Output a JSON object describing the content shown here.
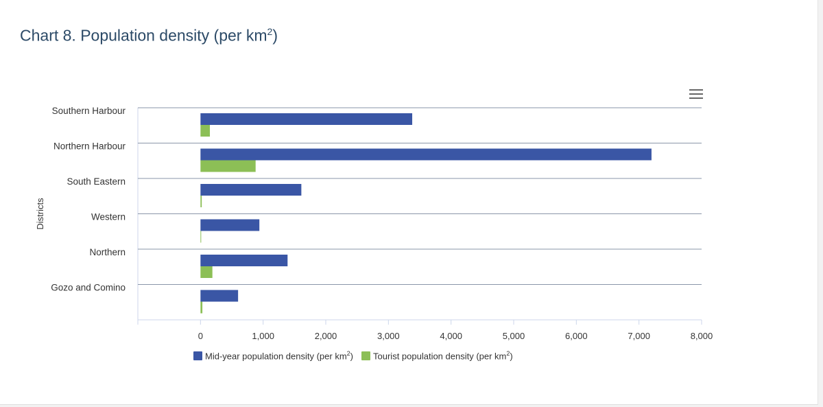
{
  "page": {
    "title": "Chart 8. Population density (per km",
    "title_sup": "2",
    "title_suffix": ")",
    "menu_icon": "hamburger-menu-icon"
  },
  "legend": {
    "items": [
      {
        "label": "Mid-year population density (per km",
        "sup": "2",
        "suffix": ")",
        "color": "#3a56a5"
      },
      {
        "label": "Tourist population density (per km",
        "sup": "2",
        "suffix": ")",
        "color": "#8cbf56"
      }
    ]
  },
  "chart_data": {
    "type": "bar",
    "orientation": "horizontal",
    "categories": [
      "Southern Harbour",
      "Northern Harbour",
      "South Eastern",
      "Western",
      "Northern",
      "Gozo and Comino"
    ],
    "series": [
      {
        "name": "Mid-year population density (per km2)",
        "color": "#3a56a5",
        "values": [
          3380,
          7200,
          1610,
          940,
          1390,
          600
        ]
      },
      {
        "name": "Tourist population density (per km2)",
        "color": "#8cbf56",
        "values": [
          150,
          880,
          20,
          10,
          190,
          30
        ]
      }
    ],
    "ylabel": "Districts",
    "xlim": [
      -1000,
      8000
    ],
    "xticks": [
      0,
      1000,
      2000,
      3000,
      4000,
      5000,
      6000,
      7000,
      8000
    ],
    "xtick_labels": [
      "0",
      "1,000",
      "2,000",
      "3,000",
      "4,000",
      "5,000",
      "6,000",
      "7,000",
      "8,000"
    ],
    "grid": "category-separators",
    "legend": "bottom"
  }
}
